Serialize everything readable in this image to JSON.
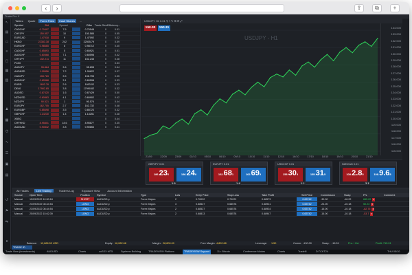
{
  "browser": {
    "back": "‹",
    "forward": "›",
    "share": "⇪",
    "tabs": "⧉",
    "newtab": "+"
  },
  "app": {
    "title": "Trade Pro X"
  },
  "watchlist": {
    "tabs": [
      "Tables",
      "Quote",
      "Forex Pairs",
      "Cash Shares",
      "..."
    ],
    "headers": [
      "Symbol",
      "Bid",
      "Spread",
      "Offer",
      "Trade Size",
      "Efficiency..."
    ],
    "rows": [
      {
        "sym": "CADCHF",
        "bid": "0.70497",
        "s1": "",
        "spr": "7.5",
        "s2": "",
        "off": "0.70548",
        "sz": "0",
        "eff": "0.51"
      },
      {
        "sym": "CHFJPY",
        "bid": "150.557",
        "s1": "",
        "spr": "10",
        "s2": "",
        "off": "150.585",
        "sz": "0",
        "eff": "0.55"
      },
      {
        "sym": "EURCAD",
        "bid": "1.47018",
        "s1": "",
        "spr": "9",
        "s2": "",
        "off": "1.47092",
        "sz": "0",
        "eff": "0.32"
      },
      {
        "sym": "HKBO",
        "bid": "22383.38",
        "s1": "",
        "spr": "242",
        "s2": "",
        "off": "22505.79",
        "sz": "0",
        "eff": "0.59"
      },
      {
        "sym": "EURCHF",
        "bid": "0.98665",
        "s1": "",
        "spr": "8",
        "s2": "",
        "off": "0.98712",
        "sz": "0",
        "eff": "0.40"
      },
      {
        "sym": "CADCHF",
        "bid": "0.65893",
        "s1": "",
        "spr": "5",
        "s2": "",
        "off": "0.65921",
        "sz": "0",
        "eff": "0.51"
      },
      {
        "sym": "AUDCHF",
        "bid": "0.60568",
        "s1": "",
        "spr": "7.1",
        "s2": "",
        "off": "0.60598",
        "sz": "0",
        "eff": "0.42"
      },
      {
        "sym": "CHFJPY",
        "bid": "152.211",
        "s1": "",
        "spr": "11",
        "s2": "",
        "off": "152.245",
        "sz": "0",
        "eff": "0.48"
      },
      {
        "sym": "PLN0",
        "bid": "",
        "s1": "",
        "spr": "",
        "s2": "",
        "off": "",
        "sz": "0",
        "eff": "0.53"
      },
      {
        "sym": "AUDJPY",
        "bid": "95.884",
        "s1": "",
        "spr": "3.6",
        "s2": "",
        "off": "95.895",
        "sz": "0",
        "eff": "0.64"
      },
      {
        "sym": "AUDNZD",
        "bid": "1.09556",
        "s1": "",
        "spr": "7.2",
        "s2": "",
        "off": "1.09622",
        "sz": "0",
        "eff": "0.37"
      },
      {
        "sym": "CADJPY",
        "bid": "108.783",
        "s1": "",
        "spr": "3.5",
        "s2": "",
        "off": "108.795",
        "sz": "0",
        "eff": "0.35"
      },
      {
        "sym": "AUDCHF",
        "bid": "0.60568",
        "s1": "",
        "spr": "3.1",
        "s2": "",
        "off": "0.60598",
        "sz": "0",
        "eff": "0.33"
      },
      {
        "sym": "EURD",
        "bid": "1602.78",
        "s1": "",
        "spr": "2.6",
        "s2": "",
        "off": "1603.02",
        "sz": "0",
        "eff": "0.33"
      },
      {
        "sym": "DE40",
        "bid": "17982.85",
        "s1": "",
        "spr": "3.8",
        "s2": "",
        "off": "17990.82",
        "sz": "0",
        "eff": "0.32"
      },
      {
        "sym": "AUDSD",
        "bid": "0.67420",
        "s1": "",
        "spr": "1.6",
        "s2": "",
        "off": "0.67429",
        "sz": "0",
        "eff": "0.50"
      },
      {
        "sym": "NZDUSD",
        "bid": "0.60863",
        "s1": "",
        "spr": "4.1",
        "s2": "",
        "off": "0.60902",
        "sz": "0",
        "eff": "0.42"
      },
      {
        "sym": "NZDJPY",
        "bid": "90.521",
        "s1": "",
        "spr": "1",
        "s2": "",
        "off": "90.574",
        "sz": "0",
        "eff": "0.44"
      },
      {
        "sym": "EURJPY",
        "bid": "162.705",
        "s1": "",
        "spr": "2.7",
        "s2": "",
        "off": "162.732",
        "sz": "0",
        "eff": "0.48"
      },
      {
        "sym": "EURGBP",
        "bid": "0.85698",
        "s1": "",
        "spr": "3.5",
        "s2": "",
        "off": "0.85723",
        "sz": "0",
        "eff": "0.32"
      },
      {
        "sym": "GBPCHF",
        "bid": "1.14230",
        "s1": "",
        "spr": "1.4",
        "s2": "",
        "off": "1.14251",
        "sz": "0",
        "eff": "0.48"
      },
      {
        "sym": "XBSG",
        "bid": "",
        "s1": "",
        "spr": "",
        "s2": "",
        "off": "",
        "sz": "0",
        "eff": "0.44"
      },
      {
        "sym": "CHFHKD",
        "bid": "8.95801",
        "s1": "",
        "spr": "18.6",
        "s2": "",
        "off": "8.95877",
        "sz": "0",
        "eff": "0.35"
      },
      {
        "sym": "AUDCAD",
        "bid": "0.90832",
        "s1": "",
        "spr": "3.8",
        "s2": "",
        "off": "0.90853",
        "sz": "0",
        "eff": "0.41"
      }
    ]
  },
  "chart": {
    "symbol": "USDJPY - H1",
    "toolbar": "USDJPY  H1  0.01  ⚲  ⌇  ✎  ⊞  ⊟  ⤢",
    "sell_ctl": "150.30",
    "buy_ctl": "150.31",
    "yaxis": [
      "134.000",
      "133.000",
      "132.000",
      "131.000",
      "130.000",
      "129.000",
      "128.000",
      "127.000",
      "126.000",
      "125.000",
      "124.000",
      "123.000",
      "122.000",
      "121.000",
      "120.000",
      "119.000",
      "118.000",
      "117.000",
      "116.000",
      "115.000"
    ],
    "xaxis": [
      "21/09",
      "22/09",
      "23/09",
      "02/10",
      "05/10",
      "06/10",
      "09/10",
      "10/10",
      "11/10",
      "12/10",
      "16/10",
      "17/10",
      "18/10",
      "19/10",
      "20/10",
      "21/10"
    ],
    "chart_data": {
      "type": "line",
      "title": "USDJPY - H1",
      "xlabel": "",
      "ylabel": "",
      "ylim": [
        114,
        135
      ],
      "values": [
        116.2,
        116.8,
        117.1,
        118.4,
        117.9,
        118.9,
        119.6,
        118.7,
        120.5,
        121.2,
        120.3,
        122.0,
        123.1,
        122.4,
        123.9,
        124.6,
        123.8,
        125.1,
        126.0,
        125.2,
        126.8,
        127.4,
        126.9,
        128.1,
        127.2,
        128.8,
        129.5,
        128.6,
        129.9,
        130.8,
        129.7,
        131.2,
        132.0,
        131.1,
        132.4,
        133.0,
        132.2,
        133.6
      ]
    }
  },
  "tiles": [
    {
      "sym": "GBPJPY 0.01",
      "sell_small": "186.",
      "sell_big": "23",
      "sell_sup": "6",
      "buy_small": "186.",
      "buy_big": "24",
      "buy_sup": "8",
      "spread": "1.6"
    },
    {
      "sym": "EURJPY 0.01",
      "sell_small": "162.",
      "sell_big": "68",
      "sell_sup": "1",
      "buy_small": "162.",
      "buy_big": "69",
      "buy_sup": "5",
      "spread": "1.4"
    },
    {
      "sym": "USDCHF 0.01",
      "sell_small": "155.",
      "sell_big": "30",
      "sell_sup": "4",
      "buy_small": "155.",
      "buy_big": "31",
      "buy_sup": "5",
      "spread": "1.1"
    },
    {
      "sym": "NZDCAD 0.01",
      "sell_small": "108.",
      "sell_big": "2.8",
      "sell_sup": "5",
      "buy_small": "108.",
      "buy_big": "9.6",
      "buy_sup": "8",
      "spread": "3.1"
    }
  ],
  "positions": {
    "tabs": [
      "All Trades",
      "Live Trading",
      "Trader's Log",
      "Exposure View",
      "Account Information"
    ],
    "headers": [
      "Source",
      "Open Time",
      "Position",
      "Symbol",
      "Type",
      "Lots",
      "Entry Price",
      "Stop Loss",
      "Take Profit",
      "Sell Price",
      "Commission",
      "Swap",
      "P/L",
      "Comment"
    ],
    "rows": [
      {
        "src": "Manual",
        "time": "15/09/2022 10:50:18",
        "pos": "SHORT",
        "sym": "AUDUSD.p",
        "type": "Forex Majors",
        "lots": "2",
        "ep": "0.70022",
        "sl": "0.70222",
        "tp": "0.68573",
        "sp": "0.65742",
        "com": "-30.00",
        "swap": "-16.22",
        "pnl": "845.20"
      },
      {
        "src": "Manual",
        "time": "23/09/2022 08:44:54",
        "pos": "LONG",
        "sym": "AUDUSD.p",
        "type": "Forex Majors",
        "lots": "3",
        "ep": "0.68527",
        "sl": "0.68578",
        "tp": "0.68941",
        "sp": "0.65742",
        "com": "-24.00",
        "swap": "-10.18",
        "pnl": "50.23"
      },
      {
        "src": "Manual",
        "time": "23/09/2022 08:44:54",
        "pos": "LONG",
        "sym": "AUDUSD.p",
        "type": "Forex Majors",
        "lots": "2",
        "ep": "0.68527",
        "sl": "0.68578",
        "tp": "0.68934",
        "sp": "0.65742",
        "com": "-16.00",
        "swap": "-10.18",
        "pnl": "-82.75"
      },
      {
        "src": "Manual",
        "time": "25/09/2022 15:02:39",
        "pos": "LONG",
        "sym": "AUDUSD.p",
        "type": "Forex Majors",
        "lots": "2",
        "ep": "0.68813",
        "sl": "0.68578",
        "tp": "0.68947",
        "sp": "0.65742",
        "com": "-16.00",
        "swap": "-10.18",
        "pnl": "-53.7"
      }
    ]
  },
  "account": {
    "balance_lbl": "Balance:",
    "balance": "12,886.52 USD",
    "equity_lbl": "Equity:",
    "equity": "16,082.68",
    "margin_lbl": "Margin:",
    "margin": "28,800.00",
    "free_lbl": "Free Margin:",
    "free": "4,802.68",
    "lev_lbl": "Leverage:",
    "lev": "1:50",
    "comm_lbl": "Comm:",
    "comm": "-130.00",
    "swap_lbl": "Swap:",
    "swap": "-16.51",
    "pl_lbl": "Pro. / Hd.",
    "profit": "Profit: 715.01"
  },
  "bottombar": [
    "Trade View (investments)",
    "AUDUSD",
    "Charts",
    "cuSSX MT5",
    "Systems Building",
    "TRADEVIEW Platform",
    "TRADEVIEW Support",
    "11 • Bitcoin",
    "Conference Modes",
    "Charts",
    "TradeN",
    "D:TCKT24",
    "THU 05/10"
  ],
  "vol_tag": "TRADE ID",
  "colors": {
    "up": "#2fd55a",
    "down": "#ff5a5a",
    "accent": "#1f6fbf"
  }
}
